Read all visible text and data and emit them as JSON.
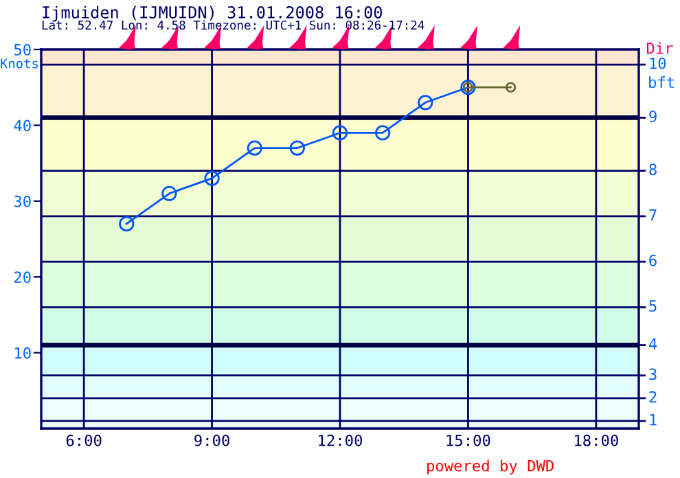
{
  "chart_data": {
    "type": "line",
    "title": "Ijmuiden (IJMUIDN) 31.01.2008 16:00",
    "subtitle": "Lat: 52.47 Lon: 4.58 Timezone: UTC+1 Sun: 08:26-17:24",
    "ylabel": "Knots",
    "annotations": [
      "Dir",
      "bft",
      "powered by DWD",
      "1",
      "2",
      "3",
      "4",
      "5",
      "6",
      "7",
      "8",
      "9",
      "10"
    ],
    "series": [
      {
        "color": "#0055ff",
        "x": [
          7,
          8,
          9,
          10,
          11,
          12,
          13,
          14,
          15
        ],
        "values": [
          27,
          31,
          33,
          37,
          37,
          39,
          39,
          43,
          45
        ]
      },
      {
        "color": "#666633",
        "x": [
          15,
          16
        ],
        "values": [
          45,
          45
        ]
      }
    ],
    "marker": "circle",
    "line_style": "solid",
    "xlim": [
      5,
      19
    ],
    "xticks": [
      {
        "value": 6,
        "label": "6:00"
      },
      {
        "value": 9,
        "label": "9:00"
      },
      {
        "value": 12,
        "label": "12:00"
      },
      {
        "value": 15,
        "label": "15:00"
      },
      {
        "value": 18,
        "label": "18:00"
      }
    ],
    "ylim": [
      0,
      50
    ],
    "yticks": [
      10,
      20,
      30,
      40,
      50
    ],
    "grid": "x",
    "ref_lines": [
      {
        "axis": "y",
        "value": 1
      },
      {
        "axis": "y",
        "value": 4
      },
      {
        "axis": "y",
        "value": 7
      },
      {
        "axis": "y",
        "value": 11,
        "color": "#000044"
      },
      {
        "axis": "y",
        "value": 16
      },
      {
        "axis": "y",
        "value": 22
      },
      {
        "axis": "y",
        "value": 28
      },
      {
        "axis": "y",
        "value": 34
      },
      {
        "axis": "y",
        "value": 41,
        "color": "#000044"
      },
      {
        "axis": "y",
        "value": 48
      }
    ],
    "bands": [
      {
        "axis": "y",
        "from": 0,
        "to": 4,
        "color": "#eefefe"
      },
      {
        "axis": "y",
        "from": 4,
        "to": 7,
        "color": "#e2fefe"
      },
      {
        "axis": "y",
        "from": 7,
        "to": 11,
        "color": "#d2fefe"
      },
      {
        "axis": "y",
        "from": 11,
        "to": 16,
        "color": "#d0fde6"
      },
      {
        "axis": "y",
        "from": 16,
        "to": 22,
        "color": "#dcfde0"
      },
      {
        "axis": "y",
        "from": 22,
        "to": 28,
        "color": "#e6fcd8"
      },
      {
        "axis": "y",
        "from": 28,
        "to": 34,
        "color": "#f2fdd4"
      },
      {
        "axis": "y",
        "from": 34,
        "to": 41,
        "color": "#ffffd0"
      },
      {
        "axis": "y",
        "from": 41,
        "to": 48,
        "color": "#fdf3d2"
      },
      {
        "axis": "y",
        "from": 48,
        "to": 50,
        "color": "#fde6d0"
      }
    ]
  }
}
